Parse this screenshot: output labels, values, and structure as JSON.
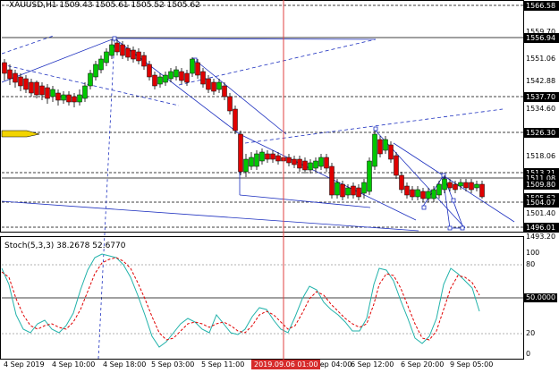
{
  "header": {
    "symbol_line": "XAUUSD,H1  1509.43 1505.61 1505.52 1505.62",
    "stoch_line": "Stoch(5,3,3) 38.2678 52.6770"
  },
  "price_axis": {
    "labels": [
      {
        "text": "1566.58",
        "style": "fill"
      },
      {
        "text": "1559.70",
        "style": "plain"
      },
      {
        "text": "1556.94",
        "style": "fill"
      },
      {
        "text": "1551.06",
        "style": "plain"
      },
      {
        "text": "1542.88",
        "style": "plain"
      },
      {
        "text": "1537.70",
        "style": "fill"
      },
      {
        "text": "1534.60",
        "style": "plain"
      },
      {
        "text": "1526.30",
        "style": "fill"
      },
      {
        "text": "1518.06",
        "style": "plain"
      },
      {
        "text": "1513.21",
        "style": "fill"
      },
      {
        "text": "1511.08",
        "style": "fill"
      },
      {
        "text": "1509.80",
        "style": "fill"
      },
      {
        "text": "1505.62",
        "style": "fill"
      },
      {
        "text": "1504.07",
        "style": "fill"
      },
      {
        "text": "1501.40",
        "style": "plain"
      },
      {
        "text": "1496.01",
        "style": "fill"
      },
      {
        "text": "1493.20",
        "style": "plain"
      }
    ]
  },
  "stoch_axis": {
    "labels": [
      {
        "text": "100",
        "style": "plain"
      },
      {
        "text": "80",
        "style": "plain"
      },
      {
        "text": "50.0000",
        "style": "fill"
      },
      {
        "text": "20",
        "style": "plain"
      },
      {
        "text": "0",
        "style": "plain"
      }
    ]
  },
  "time_axis": {
    "labels": [
      "4 Sep 2019",
      "4 Sep 10:00",
      "4 Sep 18:00",
      "5 Sep 03:00",
      "5 Sep 11:00",
      "5 Sep 04:00",
      "6 Sep 12:00",
      "6 Sep 20:00",
      "9 Sep 05:00"
    ],
    "crosshair_label": "2019.09.06 01:00"
  },
  "colors": {
    "bull": "#00c800",
    "bear": "#e00000",
    "trendline": "#1c2fbf",
    "stoch_main": "#20b2aa",
    "stoch_signal": "#e00000",
    "crosshair": "#e04040"
  }
}
